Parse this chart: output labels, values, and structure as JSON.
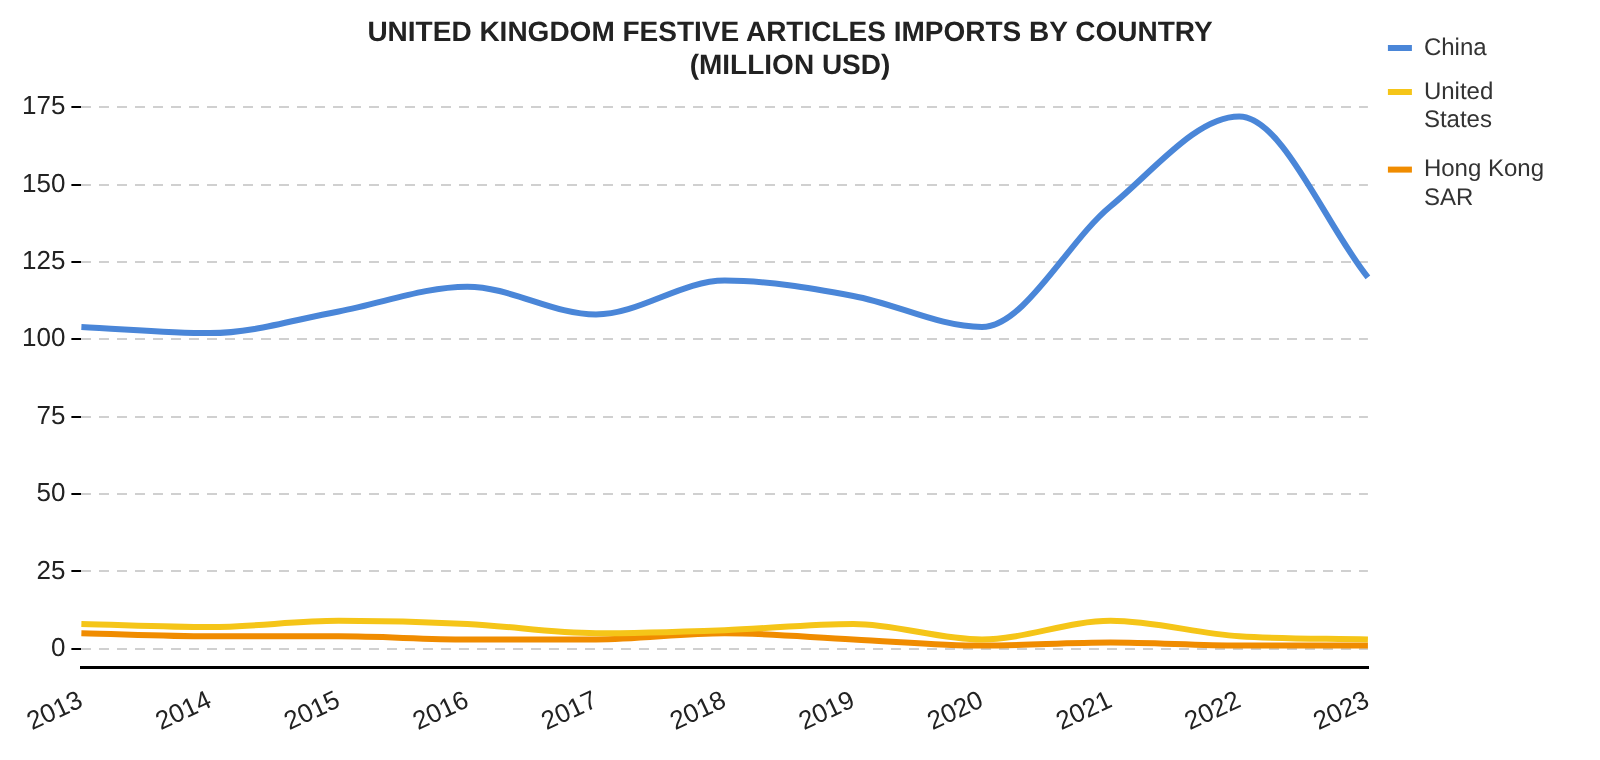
{
  "chart_data": {
    "type": "line",
    "title": "UNITED KINGDOM FESTIVE ARTICLES IMPORTS BY COUNTRY\n(MILLION USD)",
    "categories": [
      "2013",
      "2014",
      "2015",
      "2016",
      "2017",
      "2018",
      "2019",
      "2020",
      "2021",
      "2022",
      "2023"
    ],
    "series": [
      {
        "name": "China",
        "color": "#4a86d8",
        "values": [
          104,
          102,
          109,
          117,
          108,
          119,
          114,
          104,
          143,
          172,
          120
        ]
      },
      {
        "name": "United States",
        "color": "#f5c518",
        "values": [
          8,
          7,
          9,
          8,
          5,
          6,
          8,
          3,
          9,
          4,
          3
        ]
      },
      {
        "name": "Hong Kong SAR",
        "color": "#f08c00",
        "values": [
          5,
          4,
          4,
          3,
          3,
          5,
          3,
          1,
          2,
          1,
          1
        ]
      }
    ],
    "ylim": [
      -6,
      175
    ],
    "yticks": [
      0,
      25,
      50,
      75,
      100,
      125,
      150,
      175
    ],
    "grid": "y",
    "legend": "right",
    "marker": "none",
    "line_style": "solid"
  }
}
